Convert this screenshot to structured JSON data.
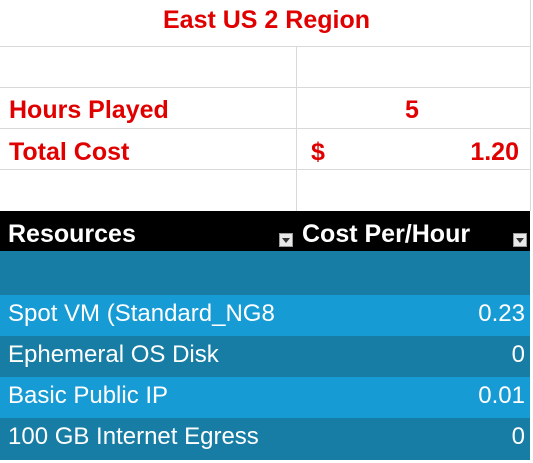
{
  "title": "East US 2 Region",
  "summary": {
    "hours_label": "Hours Played",
    "hours_value": "5",
    "cost_label": "Total Cost",
    "currency": "$",
    "cost_value": "1.20"
  },
  "table": {
    "columns": [
      "Resources",
      "Cost Per/Hour"
    ],
    "rows": [
      {
        "resource": "",
        "cost": ""
      },
      {
        "resource": "Spot VM (Standard_NG8",
        "cost": "0.23"
      },
      {
        "resource": "Ephemeral OS Disk",
        "cost": "0"
      },
      {
        "resource": "Basic Public IP",
        "cost": "0.01"
      },
      {
        "resource": "100 GB Internet Egress",
        "cost": "0"
      }
    ]
  },
  "colors": {
    "accent_red": "#e00000",
    "header_bg": "#000000",
    "row_dark": "#177da5",
    "row_light": "#179bd5"
  }
}
